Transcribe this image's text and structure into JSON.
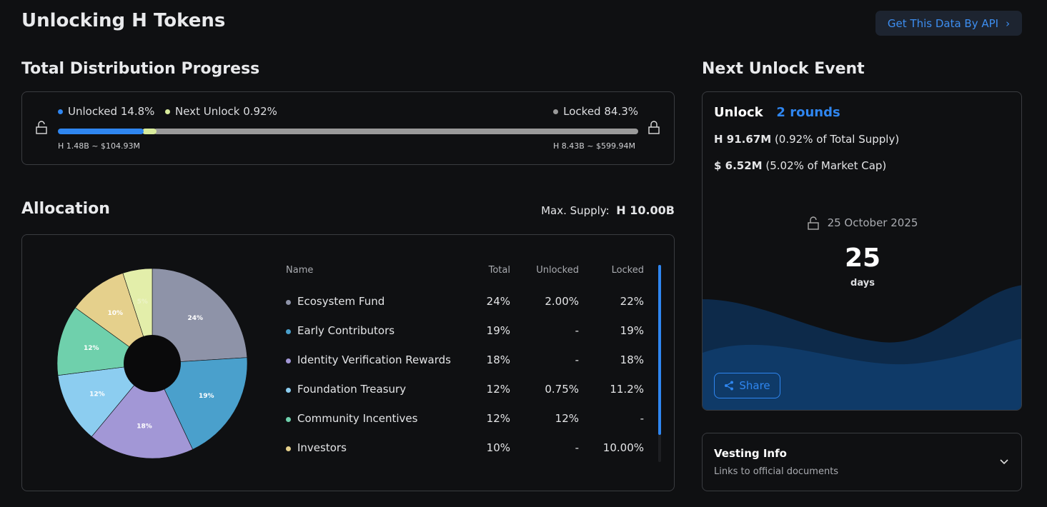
{
  "page_title": "Unlocking H Tokens",
  "api_button": "Get This Data By API",
  "distribution": {
    "title": "Total Distribution Progress",
    "unlocked_label": "Unlocked 14.8%",
    "next_unlock_label": "Next Unlock 0.92%",
    "locked_label": "Locked 84.3%",
    "unlocked_pct": 14.8,
    "next_unlock_pct": 0.92,
    "locked_pct": 84.3,
    "unlocked_amount": "H 1.48B ~ $104.93M",
    "locked_amount": "H 8.43B ~ $599.94M",
    "colors": {
      "unlocked": "#2f86f0",
      "next": "#d8eb9c",
      "locked": "#9a9a9a"
    }
  },
  "allocation": {
    "title": "Allocation",
    "max_supply_label": "Max. Supply:",
    "max_supply_value": "H 10.00B",
    "columns": [
      "Name",
      "Total",
      "Unlocked",
      "Locked"
    ],
    "rows": [
      {
        "name": "Ecosystem Fund",
        "total": "24%",
        "unlocked": "2.00%",
        "locked": "22%",
        "color": "#8e93a8"
      },
      {
        "name": "Early Contributors",
        "total": "19%",
        "unlocked": "-",
        "locked": "19%",
        "color": "#4aa0cc"
      },
      {
        "name": "Identity Verification Rewards",
        "total": "18%",
        "unlocked": "-",
        "locked": "18%",
        "color": "#a297d6"
      },
      {
        "name": "Foundation Treasury",
        "total": "12%",
        "unlocked": "0.75%",
        "locked": "11.2%",
        "color": "#8ccdf0"
      },
      {
        "name": "Community Incentives",
        "total": "12%",
        "unlocked": "12%",
        "locked": "-",
        "color": "#6fd0ac"
      },
      {
        "name": "Investors",
        "total": "10%",
        "unlocked": "-",
        "locked": "10.00%",
        "color": "#e5d08c"
      }
    ]
  },
  "chart_data": {
    "type": "pie",
    "values": [
      24,
      19,
      18,
      12,
      12,
      10,
      5
    ],
    "labels": [
      "24%",
      "19%",
      "18%",
      "12%",
      "12%",
      "10%",
      "5%"
    ],
    "colors": [
      "#8e93a8",
      "#4aa0cc",
      "#a297d6",
      "#8ccdf0",
      "#6fd0ac",
      "#e5d08c",
      "#e3eeaa"
    ]
  },
  "next_unlock": {
    "title": "Next Unlock Event",
    "unlock_label": "Unlock",
    "rounds": "2 rounds",
    "token_amount": "H 91.67M",
    "token_pct": "(0.92% of Total Supply)",
    "usd_amount": "$ 6.52M",
    "usd_pct": "(5.02% of Market Cap)",
    "date": "25 October 2025",
    "days_value": "25",
    "days_label": "days",
    "share_button": "Share"
  },
  "vesting": {
    "title": "Vesting Info",
    "subtitle": "Links to official documents"
  }
}
